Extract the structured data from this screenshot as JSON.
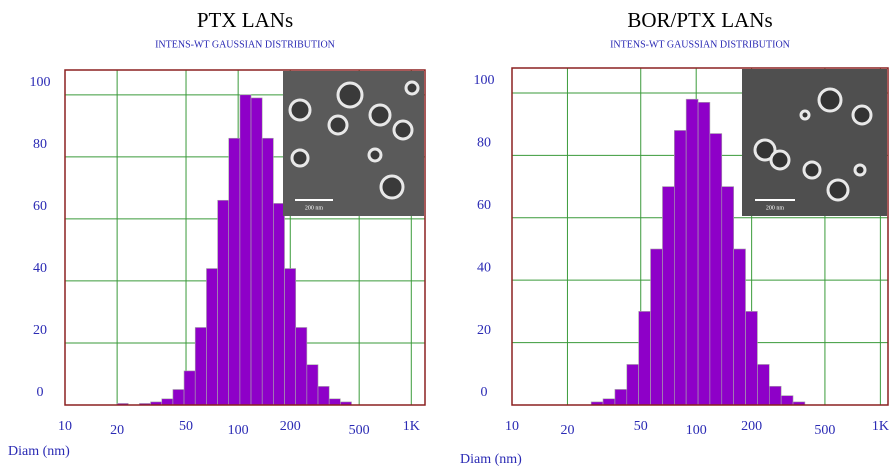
{
  "chart_data": [
    {
      "type": "histogram",
      "title": "PTX LANs",
      "subtitle": "INTENS-WT GAUSSIAN DISTRIBUTION",
      "xlabel": "Diam (nm)",
      "bins": [
        20,
        23.2,
        26.9,
        31.2,
        36.2,
        42.0,
        48.7,
        56.5,
        65.6,
        76.1,
        88.2,
        102.4,
        118.7,
        137.7,
        159.8,
        185.3,
        215.0,
        249.4,
        289.3,
        335.6,
        389.3,
        451.6
      ],
      "values": [
        0.5,
        0,
        0.5,
        1,
        2,
        5,
        11,
        25,
        44,
        66,
        86,
        100,
        99,
        86,
        65,
        44,
        25,
        13,
        6,
        2,
        1
      ],
      "color": "#8e00c8",
      "log_x": true,
      "grid": true,
      "xlim": [
        10,
        1200
      ],
      "ylim": [
        0,
        108
      ],
      "xticks": [
        10,
        20,
        50,
        100,
        200,
        500,
        {
          "value": 1000,
          "label": "1K"
        }
      ],
      "yticks": [
        0,
        20,
        40,
        60,
        80,
        100
      ],
      "inset_label": "200 nm"
    },
    {
      "type": "histogram",
      "title": "BOR/PTX LANs",
      "subtitle": "INTENS-WT GAUSSIAN DISTRIBUTION",
      "xlabel": "Diam (nm)",
      "bins": [
        20,
        23.2,
        26.9,
        31.2,
        36.2,
        42.0,
        48.7,
        56.5,
        65.6,
        76.1,
        88.2,
        102.4,
        118.7,
        137.7,
        159.8,
        185.3,
        215.0,
        249.4,
        289.3,
        335.6,
        389.3,
        451.6
      ],
      "values": [
        0,
        0,
        1,
        2,
        5,
        13,
        30,
        50,
        70,
        88,
        98,
        97,
        87,
        70,
        50,
        30,
        13,
        6,
        3,
        1,
        0
      ],
      "color": "#8e00c8",
      "log_x": true,
      "grid": true,
      "xlim": [
        10,
        1100
      ],
      "ylim": [
        0,
        108
      ],
      "xticks": [
        10,
        20,
        50,
        100,
        200,
        500,
        {
          "value": 1000,
          "label": "1K"
        }
      ],
      "yticks": [
        0,
        20,
        40,
        60,
        80,
        100
      ],
      "inset_label": "200 nm"
    }
  ]
}
